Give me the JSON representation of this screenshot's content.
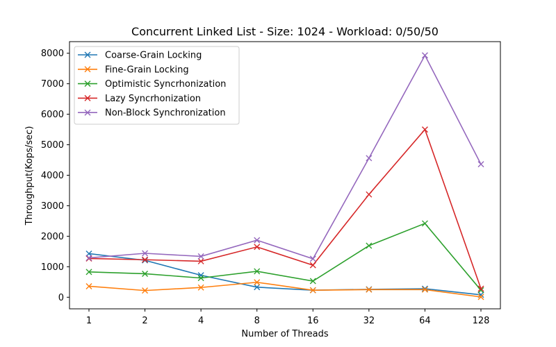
{
  "chart_data": {
    "type": "line",
    "title": "Concurrent Linked List - Size: 1024 - Workload: 0/50/50",
    "xlabel": "Number of Threads",
    "ylabel": "Throughput(Kops/sec)",
    "categories": [
      "1",
      "2",
      "4",
      "8",
      "16",
      "32",
      "64",
      "128"
    ],
    "ylim": [
      -380,
      8380
    ],
    "yticks": [
      0,
      1000,
      2000,
      3000,
      4000,
      5000,
      6000,
      7000,
      8000
    ],
    "grid": false,
    "legend_position": "upper-left",
    "marker": "x",
    "series": [
      {
        "name": "Coarse-Grain Locking",
        "color": "#1f77b4",
        "values": [
          1430,
          1210,
          720,
          330,
          230,
          260,
          280,
          80
        ]
      },
      {
        "name": "Fine-Grain Locking",
        "color": "#ff7f0e",
        "values": [
          360,
          220,
          320,
          490,
          230,
          250,
          250,
          10
        ]
      },
      {
        "name": "Optimistic Syncrhonization",
        "color": "#2ca02c",
        "values": [
          830,
          770,
          630,
          850,
          530,
          1690,
          2420,
          230
        ]
      },
      {
        "name": "Lazy Syncrhonization",
        "color": "#d62728",
        "values": [
          1270,
          1230,
          1180,
          1650,
          1050,
          3370,
          5500,
          280
        ]
      },
      {
        "name": "Non-Block Synchronization",
        "color": "#9467bd",
        "values": [
          1290,
          1440,
          1340,
          1870,
          1260,
          4560,
          7930,
          4360
        ]
      }
    ]
  }
}
